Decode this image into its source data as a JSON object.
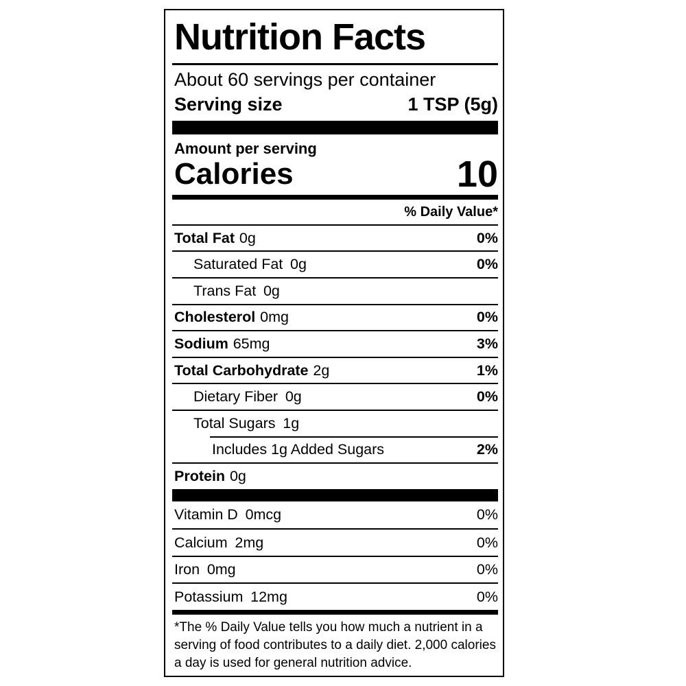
{
  "label": {
    "title": "Nutrition Facts",
    "servings_per_container": "About 60 servings per container",
    "serving_size_label": "Serving size",
    "serving_size_value": "1 TSP (5g)",
    "amount_per_serving": "Amount per serving",
    "calories_label": "Calories",
    "calories_value": "10",
    "daily_value_header": "% Daily Value*",
    "nutrients": [
      {
        "name": "Total Fat",
        "amount": "0g",
        "dv": "0%"
      },
      {
        "name": "Saturated Fat",
        "amount": "0g",
        "dv": "0%"
      },
      {
        "name": "Trans Fat",
        "amount": "0g",
        "dv": ""
      },
      {
        "name": "Cholesterol",
        "amount": "0mg",
        "dv": "0%"
      },
      {
        "name": "Sodium",
        "amount": "65mg",
        "dv": "3%"
      },
      {
        "name": "Total Carbohydrate",
        "amount": "2g",
        "dv": "1%"
      },
      {
        "name": "Dietary Fiber",
        "amount": "0g",
        "dv": "0%"
      },
      {
        "name": "Total Sugars",
        "amount": "1g",
        "dv": ""
      },
      {
        "name": "Includes 1g Added Sugars",
        "amount": "",
        "dv": "2%"
      },
      {
        "name": "Protein",
        "amount": "0g",
        "dv": ""
      }
    ],
    "vitamins": [
      {
        "name": "Vitamin D",
        "amount": "0mcg",
        "dv": "0%"
      },
      {
        "name": "Calcium",
        "amount": "2mg",
        "dv": "0%"
      },
      {
        "name": "Iron",
        "amount": "0mg",
        "dv": "0%"
      },
      {
        "name": "Potassium",
        "amount": "12mg",
        "dv": "0%"
      }
    ],
    "footnote_lines": [
      "*The % Daily Value tells you how much a nutrient in a",
      "serving of food contributes to a daily diet. 2,000 calories",
      "a day is used for general nutrition advice."
    ]
  },
  "colors": {
    "text": "#000000",
    "background": "#ffffff",
    "border": "#000000"
  }
}
